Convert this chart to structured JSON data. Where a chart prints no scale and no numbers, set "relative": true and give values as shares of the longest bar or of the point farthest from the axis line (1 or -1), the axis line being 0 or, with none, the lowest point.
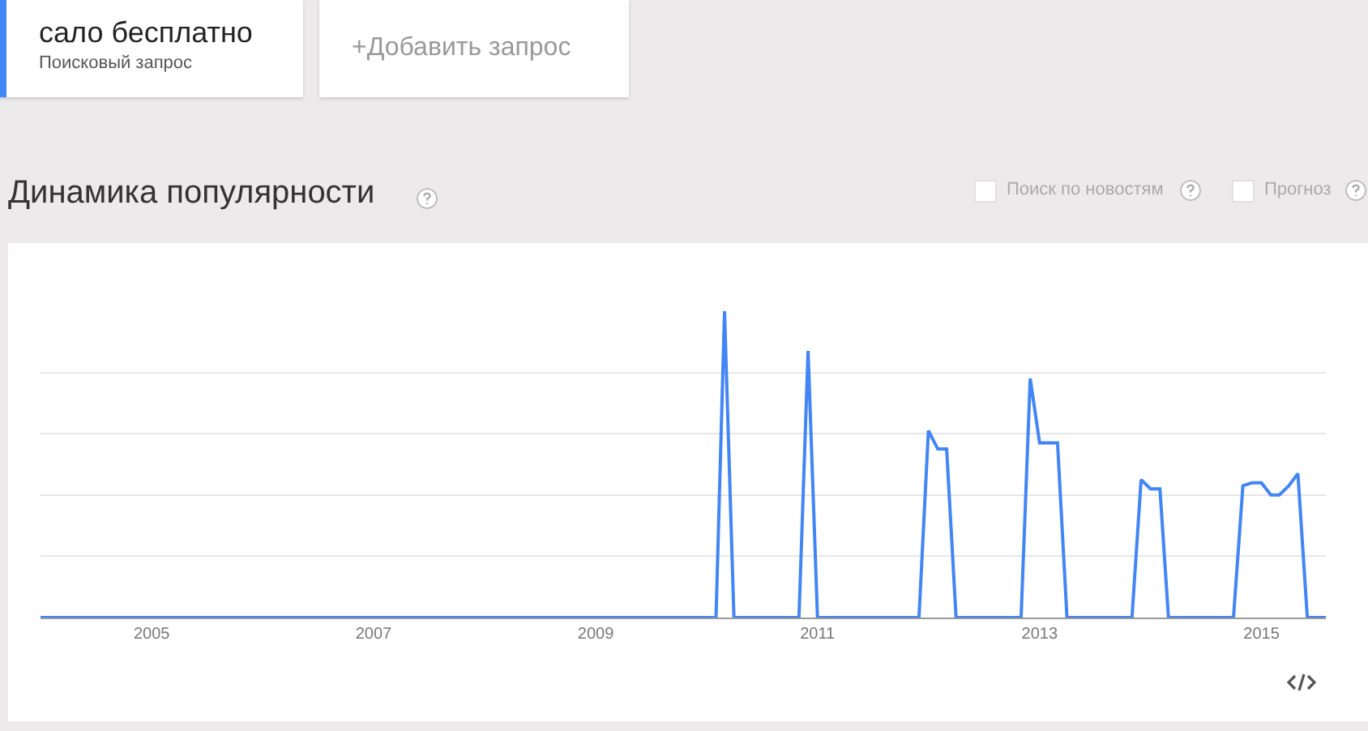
{
  "chart_data": {
    "type": "line",
    "title": "Динамика популярности",
    "annotations": [
      "сало бесплатно",
      "Поисковый запрос",
      "+Добавить запрос",
      "Поиск по новостям",
      "Прогноз"
    ],
    "relative": true,
    "grid": "y",
    "marker": "none",
    "line_style": "solid",
    "xlim": [
      "2004-01",
      "2015-08"
    ],
    "xticks": [
      {
        "value": "2005-01",
        "label": "2005"
      },
      {
        "value": "2007-01",
        "label": "2007"
      },
      {
        "value": "2009-01",
        "label": "2009"
      },
      {
        "value": "2011-01",
        "label": "2011"
      },
      {
        "value": "2013-01",
        "label": "2013"
      },
      {
        "value": "2015-01",
        "label": "2015"
      }
    ],
    "series": [
      {
        "color": "#4285f4",
        "x": [
          "2004-01",
          "2010-02",
          "2010-03",
          "2010-04",
          "2010-11",
          "2010-12",
          "2011-01",
          "2011-12",
          "2012-01",
          "2012-02",
          "2012-03",
          "2012-04",
          "2012-11",
          "2012-12",
          "2013-01",
          "2013-03",
          "2013-04",
          "2013-11",
          "2013-12",
          "2014-01",
          "2014-02",
          "2014-03",
          "2014-10",
          "2014-11",
          "2014-12",
          "2015-01",
          "2015-02",
          "2015-03",
          "2015-04",
          "2015-05",
          "2015-06",
          "2015-08"
        ],
        "values": [
          0,
          0,
          1,
          0,
          0,
          0.87,
          0,
          0,
          0.61,
          0.55,
          0.55,
          0,
          0,
          0.78,
          0.57,
          0.57,
          0,
          0,
          0.45,
          0.42,
          0.42,
          0,
          0,
          0.43,
          0.44,
          0.44,
          0.4,
          0.4,
          0.43,
          0.47,
          0,
          0
        ]
      }
    ]
  }
}
